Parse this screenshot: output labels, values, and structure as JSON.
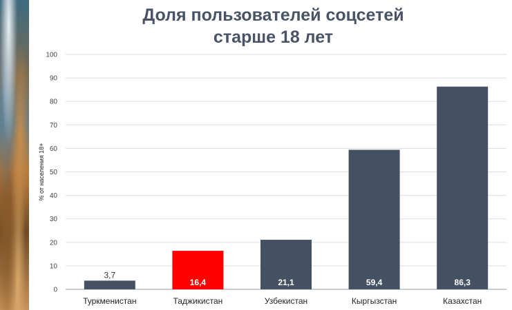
{
  "chart_data": {
    "type": "bar",
    "title_lines": [
      "Доля пользователей соцсетей",
      "старше 18 лет"
    ],
    "ylabel": "% от населения 18+",
    "xlabel": "",
    "categories": [
      "Туркменистан",
      "Таджикистан",
      "Узбекистан",
      "Кыргызстан",
      "Казахстан"
    ],
    "values": [
      3.7,
      16.4,
      21.1,
      59.4,
      86.3
    ],
    "value_labels": [
      "3,7",
      "16,4",
      "21,1",
      "59,4",
      "86,3"
    ],
    "ylim": [
      0,
      100
    ],
    "yticks": [
      "0",
      "10",
      "20",
      "30",
      "40",
      "50",
      "60",
      "70",
      "80",
      "90",
      "100"
    ],
    "grid": true,
    "legend": "none",
    "colors": {
      "default_bar": "#435163",
      "highlight_bar": "#ff0000",
      "highlight_index": 1,
      "label_inside": "#ffffff",
      "label_outside": "#333333",
      "grid": "#dddddd"
    }
  }
}
